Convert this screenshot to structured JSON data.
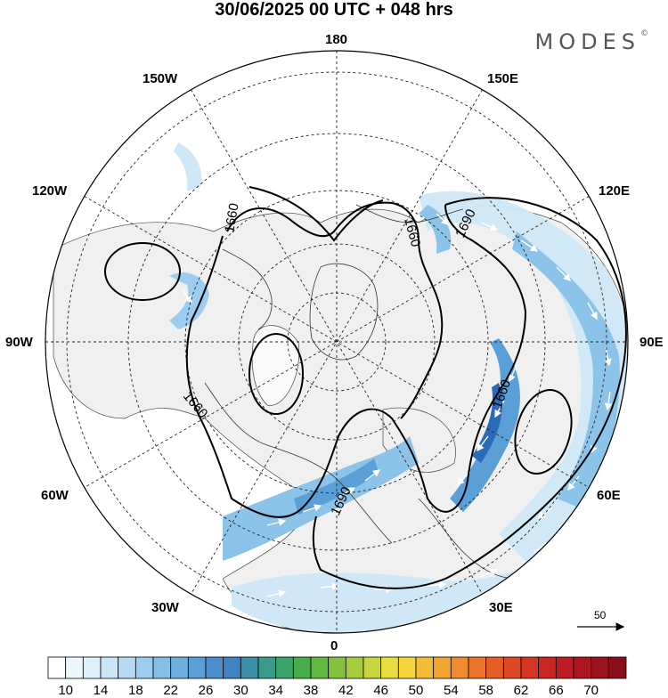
{
  "header": {
    "title": "30/06/2025  00 UTC  + 048 hrs",
    "brand": "MODES",
    "brand_mark": "©"
  },
  "map": {
    "projection": "north-polar-stereographic",
    "longitude_labels": {
      "top": "180",
      "bottom": "0",
      "left": "90W",
      "right": "90E",
      "upper_left_1": "150W",
      "upper_left_2": "120W",
      "lower_left_1": "60W",
      "lower_left_2": "30W",
      "upper_right_1": "150E",
      "upper_right_2": "120E",
      "lower_right_1": "60E",
      "lower_right_2": "30E"
    },
    "contour_labels": [
      "1660",
      "1660",
      "1690",
      "1660",
      "1660",
      "1690"
    ],
    "wind_scale_value": "50",
    "colors": {
      "land_gray": "#f2f2f2",
      "ocean": "#ffffff",
      "jet_light": "#cfe7f6",
      "jet_mid": "#8cc3e8",
      "jet_strong": "#4a90d0",
      "jet_core": "#2a6bb8"
    }
  },
  "colorbar": {
    "colors": [
      "#ffffff",
      "#eef7fc",
      "#dff0fa",
      "#cbe6f7",
      "#b5dbf3",
      "#9ccdee",
      "#84bfe8",
      "#6eb0e0",
      "#5aa0d7",
      "#4a8fcc",
      "#3f83c0",
      "#3d8fa8",
      "#3a9b8a",
      "#3aa46a",
      "#46ad4b",
      "#62b83e",
      "#84c23c",
      "#a6cc3c",
      "#c8d63d",
      "#e8de3e",
      "#f6d43b",
      "#f5bd36",
      "#f3a531",
      "#f08c2d",
      "#ec7429",
      "#e65d26",
      "#df4825",
      "#d63524",
      "#cb2624",
      "#bd1c22",
      "#ad1620",
      "#9c121e",
      "#8b0f1b"
    ],
    "labels": [
      "10",
      "14",
      "18",
      "22",
      "26",
      "30",
      "34",
      "38",
      "42",
      "46",
      "50",
      "54",
      "58",
      "62",
      "66",
      "70"
    ]
  }
}
